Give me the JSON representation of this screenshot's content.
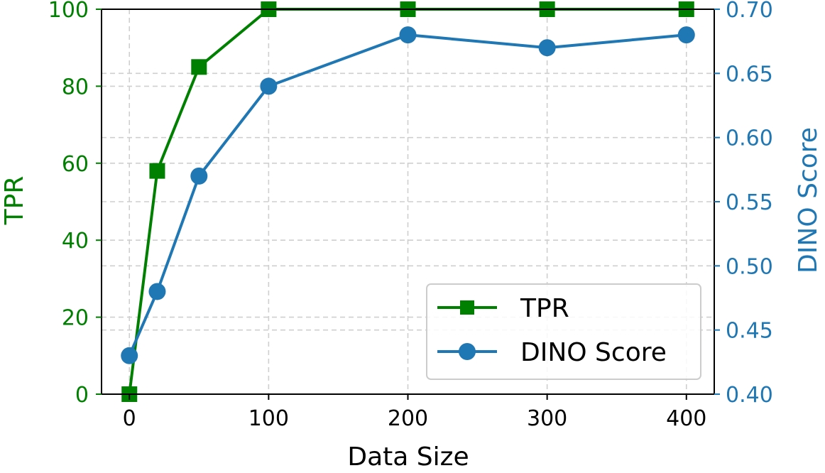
{
  "chart_data": {
    "type": "line",
    "xlabel": "Data Size",
    "ylabel_left": "TPR",
    "ylabel_right": "DINO Score",
    "x_ticks": [
      "0",
      "100",
      "200",
      "300",
      "400"
    ],
    "y_left_ticks": [
      "0",
      "20",
      "40",
      "60",
      "80",
      "100"
    ],
    "y_right_ticks": [
      "0.40",
      "0.45",
      "0.50",
      "0.55",
      "0.60",
      "0.65",
      "0.70"
    ],
    "y_left_lim": [
      0,
      100
    ],
    "y_right_lim": [
      0.4,
      0.7
    ],
    "grid": true,
    "legend_position": "lower-right",
    "colors": {
      "left_axis": "#008000",
      "right_axis": "#1f77b4"
    },
    "series": [
      {
        "name": "TPR",
        "axis": "left",
        "color": "#008000",
        "marker": "square",
        "x": [
          "0",
          "20",
          "50",
          "100",
          "200",
          "300",
          "400"
        ],
        "values": [
          0,
          58,
          85,
          100,
          100,
          100,
          100
        ]
      },
      {
        "name": "DINO Score",
        "axis": "right",
        "color": "#1f77b4",
        "marker": "circle",
        "x": [
          "0",
          "20",
          "50",
          "100",
          "200",
          "300",
          "400"
        ],
        "values": [
          0.43,
          0.48,
          0.57,
          0.64,
          0.68,
          0.67,
          0.68
        ]
      }
    ]
  }
}
